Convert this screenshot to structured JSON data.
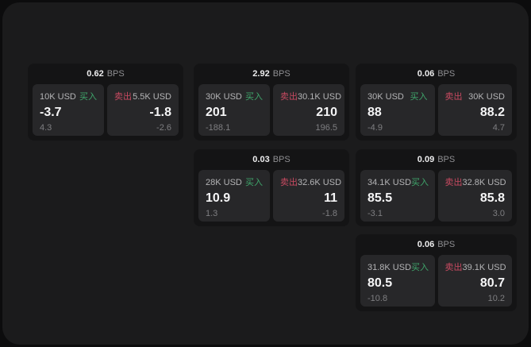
{
  "colors": {
    "buy_green": "#3fa56b",
    "sell_red": "#c84a61",
    "value_white": "#f5f5f6",
    "delta_gray": "#7e7e81",
    "amount_gray": "#b4b4b6",
    "panel_bg": "#1b1b1c",
    "card_bg": "#141415",
    "tile_bg": "#272729"
  },
  "cards": [
    {
      "bps": "0.62",
      "unit": "BPS",
      "buy": {
        "amount": "10K USD",
        "side": "买入",
        "value": "-3.7",
        "delta": "4.3"
      },
      "sell": {
        "side": "卖出",
        "amount": "5.5K USD",
        "value": "-1.8",
        "delta": "-2.6"
      }
    },
    {
      "bps": "2.92",
      "unit": "BPS",
      "buy": {
        "amount": "30K USD",
        "side": "买入",
        "value": "201",
        "delta": "-188.1"
      },
      "sell": {
        "side": "卖出",
        "amount": "30.1K USD",
        "value": "210",
        "delta": "196.5"
      }
    },
    {
      "bps": "0.06",
      "unit": "BPS",
      "buy": {
        "amount": "30K USD",
        "side": "买入",
        "value": "88",
        "delta": "-4.9"
      },
      "sell": {
        "side": "卖出",
        "amount": "30K USD",
        "value": "88.2",
        "delta": "4.7"
      }
    },
    {
      "bps": "0.03",
      "unit": "BPS",
      "buy": {
        "amount": "28K USD",
        "side": "买入",
        "value": "10.9",
        "delta": "1.3"
      },
      "sell": {
        "side": "卖出",
        "amount": "32.6K USD",
        "value": "11",
        "delta": "-1.8"
      }
    },
    {
      "bps": "0.09",
      "unit": "BPS",
      "buy": {
        "amount": "34.1K USD",
        "side": "买入",
        "value": "85.5",
        "delta": "-3.1"
      },
      "sell": {
        "side": "卖出",
        "amount": "32.8K USD",
        "value": "85.8",
        "delta": "3.0"
      }
    },
    {
      "bps": "0.06",
      "unit": "BPS",
      "buy": {
        "amount": "31.8K USD",
        "side": "买入",
        "value": "80.5",
        "delta": "-10.8"
      },
      "sell": {
        "side": "卖出",
        "amount": "39.1K USD",
        "value": "80.7",
        "delta": "10.2"
      }
    }
  ]
}
